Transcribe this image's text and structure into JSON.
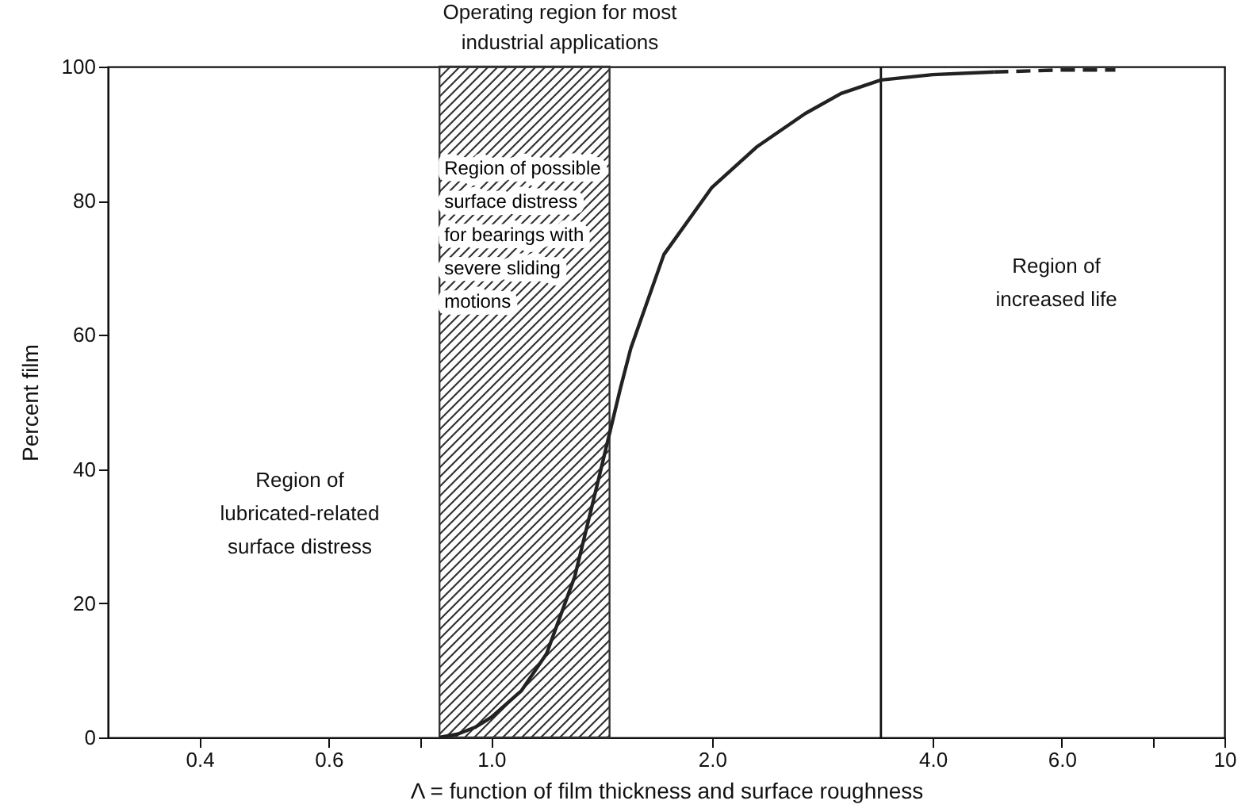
{
  "chart_data": {
    "type": "line",
    "xlabel": "Λ = function of film thickness and surface roughness",
    "ylabel": "Percent film",
    "log": "x",
    "xlim": [
      0.3,
      10
    ],
    "ylim": [
      0,
      100
    ],
    "xticks": [
      0.4,
      0.6,
      {
        "value": 0.8,
        "label": null
      },
      {
        "value": 1,
        "label": "1.0"
      },
      {
        "value": 2,
        "label": "2.0"
      },
      {
        "value": 4,
        "label": "4.0"
      },
      {
        "value": 6,
        "label": "6.0"
      },
      {
        "value": 8,
        "label": null
      },
      10
    ],
    "yticks": [
      0,
      20,
      40,
      60,
      80,
      100
    ],
    "grid": false,
    "series": [
      {
        "color": "#222222",
        "line_style": "solid",
        "x": [
          0.85,
          0.9,
          0.95,
          1.0,
          1.1,
          1.19,
          1.3,
          1.39,
          1.5,
          1.55,
          1.72,
          2.0,
          2.3,
          2.68,
          3.0,
          3.4,
          4.0,
          4.85
        ],
        "values": [
          0,
          0.5,
          1.5,
          3,
          7,
          12.5,
          24,
          37,
          52,
          58,
          72,
          82,
          88,
          93,
          96,
          98,
          98.8,
          99.2
        ]
      },
      {
        "color": "#222222",
        "line_style": "dashed",
        "x": [
          4.85,
          6.0,
          7.1
        ],
        "values": [
          99.2,
          99.5,
          99.5
        ]
      }
    ],
    "bands": [
      {
        "axis": "x",
        "from": 0.85,
        "to": 1.45,
        "label": "Region of possible surface distress for bearings with severe sliding motions",
        "color": "#333333"
      }
    ],
    "ref_lines": [
      {
        "axis": "x",
        "value": 3.4,
        "color": "#111111"
      }
    ],
    "annotations": [
      "Region of lubricated-related surface distress",
      "Operating region for most industrial applications",
      "Region of increased life"
    ]
  }
}
